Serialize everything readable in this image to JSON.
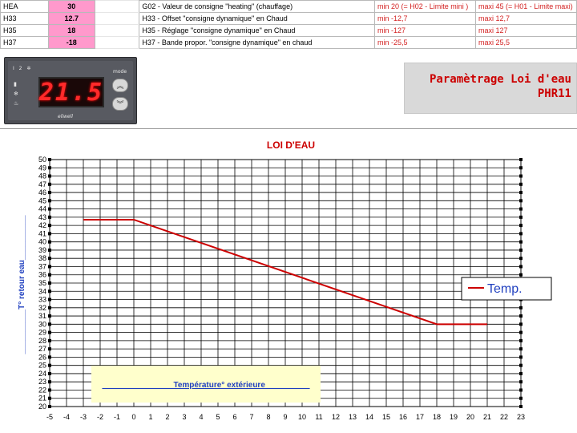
{
  "sheet": {
    "rows": [
      {
        "code": "HEA",
        "value": "30",
        "desc": "G02 - Valeur de consigne \"heating\" (chauffage)",
        "min": "min 20  (= H02 - Limite mini )",
        "max": "maxi 45 (= H01 - Limite maxi)"
      },
      {
        "code": "H33",
        "value": "12.7",
        "desc": "H33 - Offset \"consigne dynamique\" en Chaud",
        "min": "min -12,7",
        "max": "maxi 12,7"
      },
      {
        "code": "H35",
        "value": "18",
        "desc": "H35 - Réglage \"consigne dynamique\" en Chaud",
        "min": "min -127",
        "max": "maxi 127"
      },
      {
        "code": "H37",
        "value": "-18",
        "desc": "H37 - Bande propor. \"consigne dynamique\" en chaud",
        "min": "min -25,5",
        "max": "maxi 25,5"
      }
    ],
    "value_fill": "#ff99cc",
    "minmax_color": "#d32020"
  },
  "controller": {
    "display": "21.5",
    "mode_label": "mode",
    "brand": "eliwell",
    "icons": [
      "up-arrow-icon",
      "down-arrow-icon"
    ]
  },
  "title": {
    "line1": "Paramètrage Loi d'eau",
    "line2": "PHR11",
    "color": "#cc0000"
  },
  "chart_data": {
    "type": "line",
    "title": "LOI  D'EAU",
    "xlabel": "Température° extérieure",
    "ylabel": "T° retour eau",
    "xlim": [
      -5,
      23
    ],
    "ylim": [
      20,
      50
    ],
    "xticks": [
      -5,
      -4,
      -3,
      -2,
      -1,
      0,
      1,
      2,
      3,
      4,
      5,
      6,
      7,
      8,
      9,
      10,
      11,
      12,
      13,
      14,
      15,
      16,
      17,
      18,
      19,
      20,
      21,
      22,
      23
    ],
    "yticks": [
      20,
      21,
      22,
      23,
      24,
      25,
      26,
      27,
      28,
      29,
      30,
      31,
      32,
      33,
      34,
      35,
      36,
      37,
      38,
      39,
      40,
      41,
      42,
      43,
      44,
      45,
      46,
      47,
      48,
      49,
      50
    ],
    "grid": true,
    "legend_position": "right",
    "series": [
      {
        "name": "Temp.",
        "color": "#cc0000",
        "x": [
          -3,
          0,
          18,
          21
        ],
        "y": [
          42.7,
          42.7,
          30,
          30
        ]
      }
    ],
    "xlabel_box_fill": "#ffffcc",
    "title_color": "#cc0000",
    "axis_label_color": "#1f3fbf"
  }
}
